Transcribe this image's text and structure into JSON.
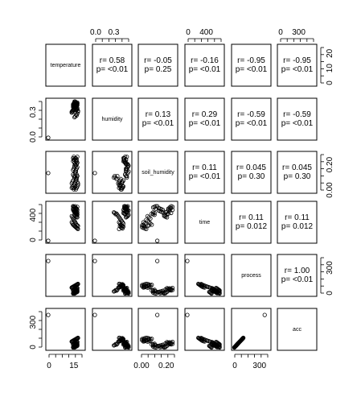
{
  "chart_data": {
    "type": "scatter",
    "variables": [
      "temperature",
      "humidity",
      "soil_humidity",
      "time",
      "process",
      "acc"
    ],
    "correlations": [
      {
        "row": 0,
        "col": 1,
        "r": "r= 0.58",
        "p": "p= <0.01"
      },
      {
        "row": 0,
        "col": 2,
        "r": "r= -0.05",
        "p": "p= 0.25"
      },
      {
        "row": 0,
        "col": 3,
        "r": "r= -0.16",
        "p": "p= <0.01"
      },
      {
        "row": 0,
        "col": 4,
        "r": "r= -0.95",
        "p": "p= <0.01"
      },
      {
        "row": 0,
        "col": 5,
        "r": "r= -0.95",
        "p": "p= <0.01"
      },
      {
        "row": 1,
        "col": 2,
        "r": "r= 0.13",
        "p": "p= <0.01"
      },
      {
        "row": 1,
        "col": 3,
        "r": "r= 0.29",
        "p": "p= <0.01"
      },
      {
        "row": 1,
        "col": 4,
        "r": "r= -0.59",
        "p": "p= <0.01"
      },
      {
        "row": 1,
        "col": 5,
        "r": "r= -0.59",
        "p": "p= <0.01"
      },
      {
        "row": 2,
        "col": 3,
        "r": "r= 0.11",
        "p": "p= <0.01"
      },
      {
        "row": 2,
        "col": 4,
        "r": "r= 0.045",
        "p": "p= 0.30"
      },
      {
        "row": 2,
        "col": 5,
        "r": "r= 0.045",
        "p": "p= 0.30"
      },
      {
        "row": 3,
        "col": 4,
        "r": "r= 0.11",
        "p": "p= 0.012"
      },
      {
        "row": 3,
        "col": 5,
        "r": "r= 0.11",
        "p": "p= 0.012"
      },
      {
        "row": 4,
        "col": 5,
        "r": "r= 1.00",
        "p": "p= <0.01"
      }
    ],
    "axes": {
      "top": [
        {
          "col": 1,
          "ticks": [
            "0.0",
            "0.3"
          ]
        },
        {
          "col": 3,
          "ticks": [
            "0",
            "400"
          ]
        },
        {
          "col": 5,
          "ticks": [
            "0",
            "300"
          ]
        }
      ],
      "bottom": [
        {
          "col": 0,
          "ticks": [
            "0",
            "15"
          ]
        },
        {
          "col": 2,
          "ticks": [
            "0.00",
            "0.20"
          ]
        },
        {
          "col": 4,
          "ticks": [
            "0",
            "300"
          ]
        }
      ],
      "left": [
        {
          "row": 1,
          "ticks": [
            "0.0",
            "0.3"
          ]
        },
        {
          "row": 3,
          "ticks": [
            "0",
            "400"
          ]
        },
        {
          "row": 5,
          "ticks": [
            "0",
            "300"
          ]
        }
      ],
      "right": [
        {
          "row": 0,
          "ticks": [
            "0",
            "10",
            "20"
          ]
        },
        {
          "row": 2,
          "ticks": [
            "0.00",
            "0.20"
          ]
        },
        {
          "row": 4,
          "ticks": [
            "0",
            "300"
          ]
        }
      ]
    },
    "ranges": {
      "temperature": [
        0,
        25
      ],
      "humidity": [
        0,
        0.4
      ],
      "soil_humidity": [
        0,
        0.25
      ],
      "time": [
        0,
        600
      ],
      "process": [
        0,
        450
      ],
      "acc": [
        0,
        450
      ]
    },
    "data": {
      "temperature": [
        0,
        18,
        18.5,
        19,
        19.5,
        20,
        20.5,
        21,
        18,
        18.5,
        19,
        19.5,
        20,
        20.5,
        21,
        17,
        17.5,
        18,
        18.5,
        19,
        19.5,
        20,
        20.5,
        21,
        21.5,
        18,
        18.5,
        19,
        19.5,
        20,
        20.5,
        21,
        18,
        18.5,
        19,
        19.5,
        20,
        20.5,
        21,
        17,
        17.5,
        18,
        18.5,
        19,
        19.5,
        20,
        20.5,
        21,
        21.5,
        19,
        19.5,
        20,
        20.5,
        21,
        19,
        19.5,
        20,
        20.5,
        21
      ],
      "humidity": [
        0,
        0.35,
        0.36,
        0.37,
        0.38,
        0.36,
        0.35,
        0.37,
        0.33,
        0.34,
        0.35,
        0.36,
        0.33,
        0.34,
        0.35,
        0.27,
        0.28,
        0.29,
        0.3,
        0.31,
        0.32,
        0.33,
        0.3,
        0.31,
        0.29,
        0.36,
        0.37,
        0.38,
        0.39,
        0.37,
        0.36,
        0.38,
        0.34,
        0.35,
        0.36,
        0.34,
        0.35,
        0.36,
        0.37,
        0.28,
        0.29,
        0.3,
        0.31,
        0.32,
        0.33,
        0.3,
        0.31,
        0.32,
        0.28,
        0.39,
        0.38,
        0.38,
        0.37,
        0.36,
        0.22,
        0.23,
        0.25,
        0.24,
        0.26
      ],
      "soil_humidity": [
        0.12,
        0.11,
        0.1,
        0.09,
        0.12,
        0.13,
        0.11,
        0.1,
        0.2,
        0.21,
        0.19,
        0.18,
        0.22,
        0.2,
        0.19,
        0.05,
        0.06,
        0.07,
        0.04,
        0.05,
        0.06,
        0.07,
        0.08,
        0.06,
        0.05,
        0.14,
        0.15,
        0.16,
        0.13,
        0.14,
        0.15,
        0.16,
        0.22,
        0.23,
        0.21,
        0.22,
        0.2,
        0.21,
        0.23,
        0.02,
        0.03,
        0.02,
        0.01,
        0.02,
        0.03,
        0.01,
        0.02,
        0.03,
        0.04,
        0.17,
        0.18,
        0.17,
        0.18,
        0.19,
        0.09,
        0.1,
        0.08,
        0.09,
        0.1
      ],
      "time": [
        0,
        560,
        550,
        540,
        560,
        530,
        520,
        550,
        500,
        480,
        470,
        460,
        450,
        440,
        430,
        400,
        380,
        360,
        340,
        320,
        300,
        280,
        260,
        250,
        240,
        520,
        510,
        500,
        490,
        480,
        470,
        460,
        560,
        550,
        540,
        530,
        520,
        510,
        500,
        300,
        280,
        260,
        250,
        240,
        230,
        220,
        210,
        200,
        190,
        420,
        410,
        400,
        390,
        380,
        460,
        450,
        440,
        430,
        420
      ],
      "process": [
        400,
        5,
        10,
        15,
        20,
        25,
        30,
        35,
        40,
        45,
        50,
        55,
        60,
        65,
        70,
        75,
        80,
        85,
        90,
        95,
        100,
        105,
        110,
        115,
        120,
        8,
        12,
        18,
        22,
        28,
        32,
        38,
        42,
        48,
        52,
        58,
        62,
        68,
        72,
        78,
        82,
        88,
        92,
        98,
        102,
        108,
        112,
        118,
        122,
        5,
        10,
        15,
        20,
        25,
        30,
        35,
        40,
        45,
        50
      ],
      "acc": [
        400,
        5,
        10,
        15,
        20,
        25,
        30,
        35,
        40,
        45,
        50,
        55,
        60,
        65,
        70,
        75,
        80,
        85,
        90,
        95,
        100,
        105,
        110,
        115,
        120,
        8,
        12,
        18,
        22,
        28,
        32,
        38,
        42,
        48,
        52,
        58,
        62,
        68,
        72,
        78,
        82,
        88,
        92,
        98,
        102,
        108,
        112,
        118,
        122,
        5,
        10,
        15,
        20,
        25,
        30,
        35,
        40,
        45,
        50
      ]
    }
  }
}
